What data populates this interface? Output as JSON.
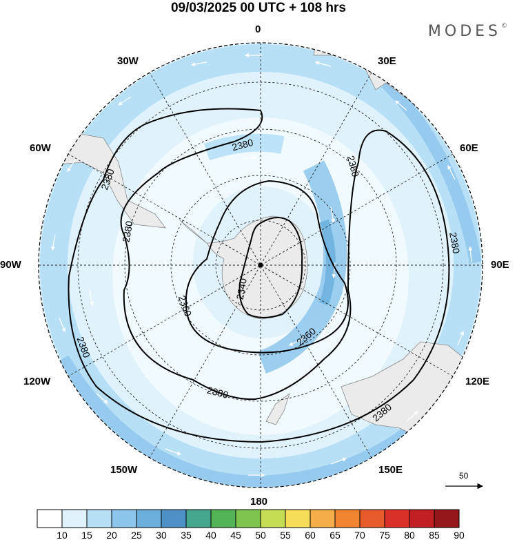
{
  "header": {
    "title": "09/03/2025  00 UTC  + 108 hrs",
    "brand": "MODES",
    "brand_mark": "©"
  },
  "map": {
    "projection": "south-polar-stereographic",
    "longitude_labels": [
      "0",
      "30E",
      "60E",
      "90E",
      "120E",
      "150E",
      "180",
      "150W",
      "120W",
      "90W",
      "60W",
      "30W"
    ],
    "contour_labels": [
      "2380",
      "2380",
      "2380",
      "2380",
      "2380",
      "2380",
      "2380",
      "2380",
      "2360",
      "2360",
      "2340"
    ],
    "land_color": "#ebebeb",
    "graticule": "dotted"
  },
  "legend": {
    "values": [
      "10",
      "15",
      "20",
      "25",
      "30",
      "35",
      "40",
      "45",
      "50",
      "55",
      "60",
      "65",
      "70",
      "75",
      "80",
      "85",
      "90"
    ],
    "colors": [
      "#ffffff",
      "#e0f3fd",
      "#b7e0f7",
      "#8dc6ec",
      "#69aedd",
      "#4e91c6",
      "#45a88e",
      "#52b456",
      "#80c64e",
      "#c5dc55",
      "#f7de5a",
      "#f4ad48",
      "#ef8530",
      "#e85b2a",
      "#d93028",
      "#c21f25",
      "#96171b"
    ]
  },
  "reference_vector": {
    "label": "50"
  }
}
